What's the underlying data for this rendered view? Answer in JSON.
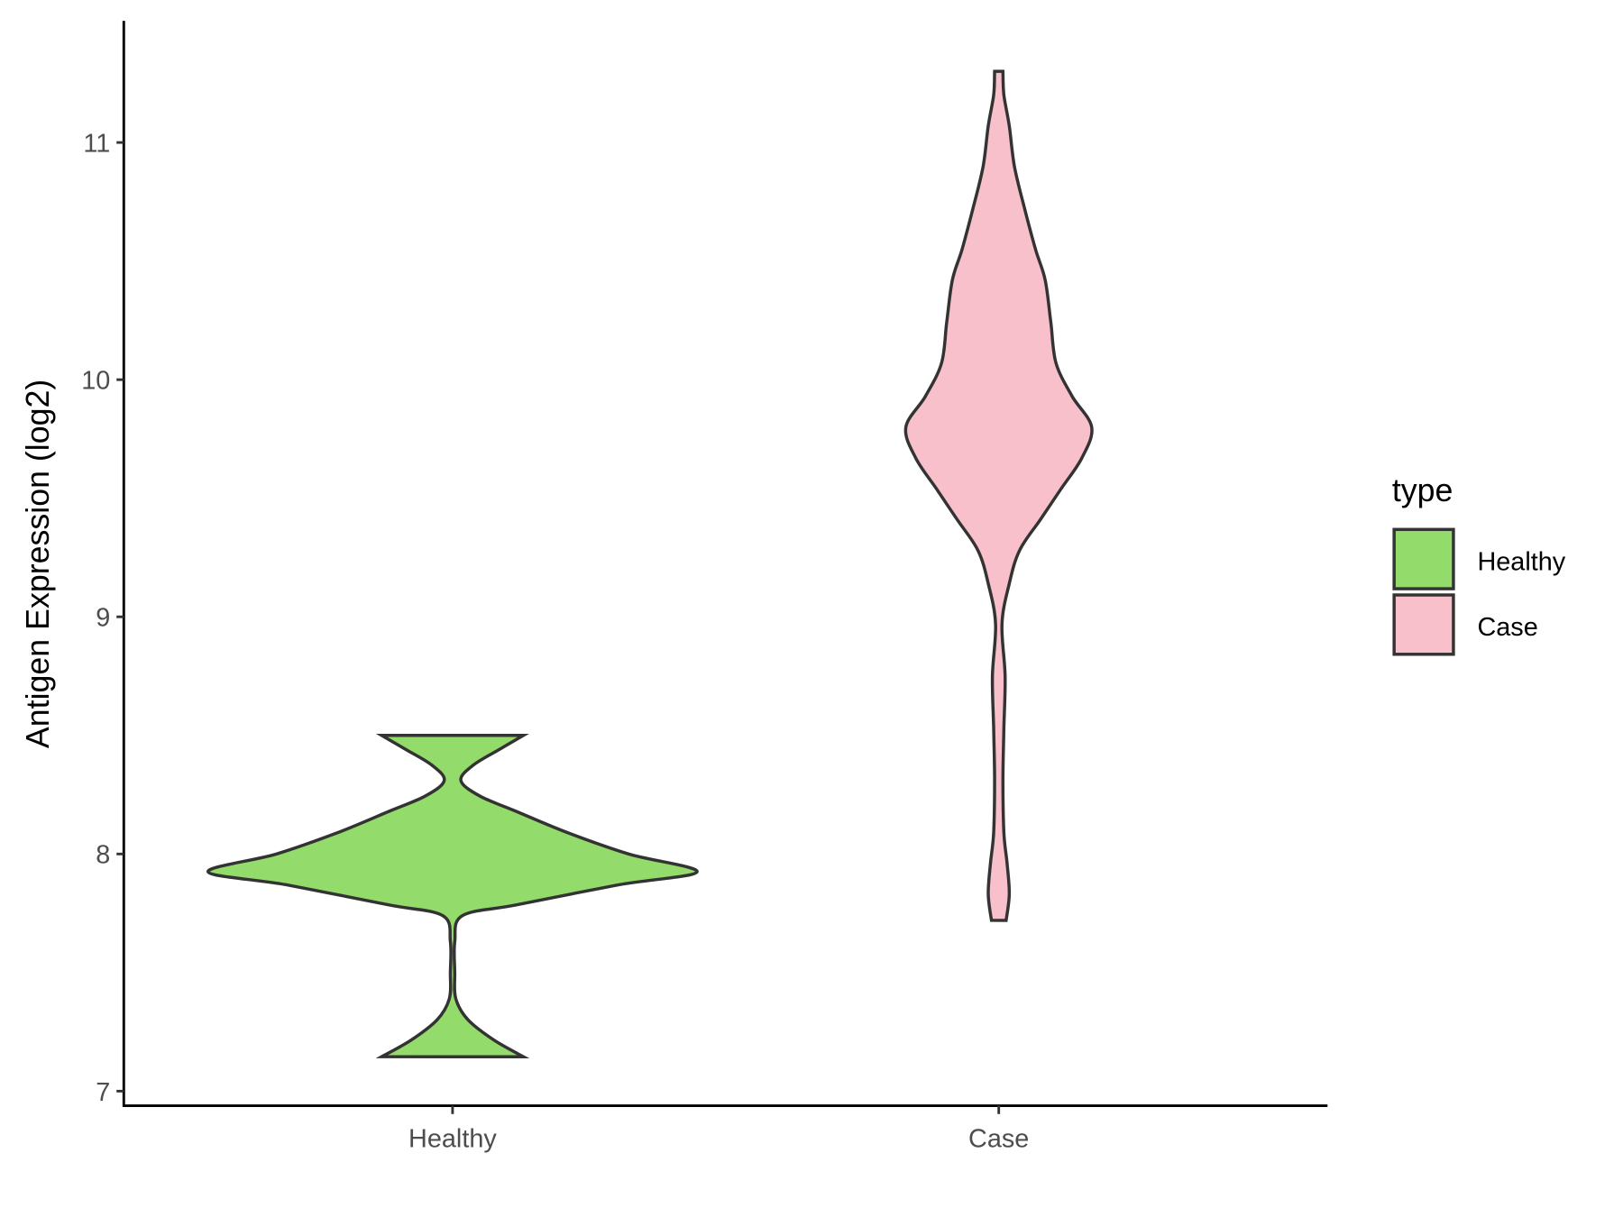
{
  "chart_data": {
    "type": "violin",
    "title": "",
    "xlabel": "",
    "ylabel": "Antigen Expression (log2)",
    "ylim": [
      6.94,
      11.53
    ],
    "yticks": [
      7,
      8,
      9,
      10,
      11
    ],
    "grid": false,
    "categories": [
      "Healthy",
      "Case"
    ],
    "legend": {
      "title": "type",
      "position": "right",
      "entries": [
        "Healthy",
        "Case"
      ]
    },
    "series": [
      {
        "name": "Healthy",
        "color": "#93DB6A",
        "range": [
          7.145,
          8.5
        ],
        "density_profile": [
          [
            7.145,
            0.29
          ],
          [
            7.215,
            0.17
          ],
          [
            7.3,
            0.064
          ],
          [
            7.39,
            0.013
          ],
          [
            7.5,
            0.009
          ],
          [
            7.63,
            0.009
          ],
          [
            7.74,
            0.04
          ],
          [
            7.785,
            0.26
          ],
          [
            7.87,
            0.68
          ],
          [
            7.925,
            1.0
          ],
          [
            8.0,
            0.72
          ],
          [
            8.09,
            0.47
          ],
          [
            8.18,
            0.26
          ],
          [
            8.245,
            0.11
          ],
          [
            8.31,
            0.034
          ],
          [
            8.375,
            0.085
          ],
          [
            8.44,
            0.19
          ],
          [
            8.5,
            0.29
          ]
        ]
      },
      {
        "name": "Case",
        "color": "#F7C0CB",
        "range": [
          7.72,
          11.3
        ],
        "density_profile": [
          [
            7.72,
            0.03
          ],
          [
            7.83,
            0.043
          ],
          [
            7.96,
            0.034
          ],
          [
            8.09,
            0.021
          ],
          [
            8.31,
            0.017
          ],
          [
            8.53,
            0.021
          ],
          [
            8.75,
            0.026
          ],
          [
            8.97,
            0.013
          ],
          [
            9.14,
            0.043
          ],
          [
            9.28,
            0.085
          ],
          [
            9.41,
            0.17
          ],
          [
            9.54,
            0.255
          ],
          [
            9.67,
            0.34
          ],
          [
            9.8,
            0.38
          ],
          [
            9.93,
            0.3
          ],
          [
            10.07,
            0.234
          ],
          [
            10.24,
            0.213
          ],
          [
            10.42,
            0.19
          ],
          [
            10.55,
            0.15
          ],
          [
            10.72,
            0.106
          ],
          [
            10.9,
            0.064
          ],
          [
            11.07,
            0.043
          ],
          [
            11.2,
            0.021
          ],
          [
            11.3,
            0.017
          ]
        ]
      }
    ]
  }
}
